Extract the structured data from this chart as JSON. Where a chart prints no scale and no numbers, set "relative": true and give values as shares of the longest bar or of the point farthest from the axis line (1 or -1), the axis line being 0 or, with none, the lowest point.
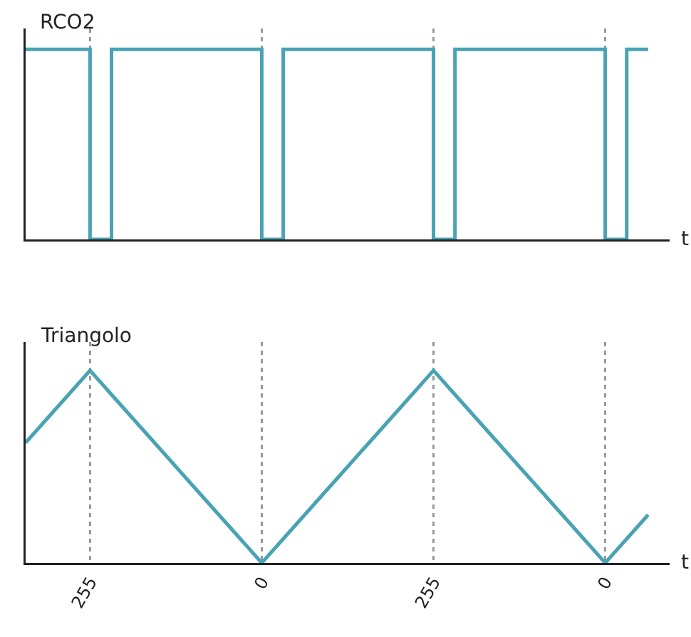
{
  "chart_data": [
    {
      "type": "step",
      "ylabel": "RCO2",
      "xlabel": "t",
      "relative": true,
      "tick_labels": false,
      "grid": "x",
      "categories": [
        null,
        null,
        null,
        "255",
        null,
        null,
        null,
        null,
        null,
        null,
        null,
        "0",
        null,
        null,
        null,
        null,
        null,
        null,
        null,
        "255",
        null,
        null,
        null,
        null,
        null,
        null,
        null,
        "0",
        null,
        null
      ],
      "series": [
        {
          "color": "#4aa3b5",
          "values": [
            1,
            1,
            1,
            0,
            1,
            1,
            1,
            1,
            1,
            1,
            1,
            0,
            1,
            1,
            1,
            1,
            1,
            1,
            1,
            0,
            1,
            1,
            1,
            1,
            1,
            1,
            1,
            0,
            1,
            1
          ]
        }
      ]
    },
    {
      "type": "line",
      "ylabel": "Triangolo",
      "xlabel": "t",
      "relative": true,
      "tick_labels": "x",
      "grid": "x",
      "categories": [
        null,
        null,
        null,
        "255",
        null,
        null,
        null,
        null,
        null,
        null,
        null,
        "0",
        null,
        null,
        null,
        null,
        null,
        null,
        null,
        "255",
        null,
        null,
        null,
        null,
        null,
        null,
        null,
        "0",
        null,
        null
      ],
      "series": [
        {
          "color": "#4aa3b5",
          "values": [
            0.625,
            0.75,
            0.875,
            1,
            0.875,
            0.75,
            0.625,
            0.5,
            0.375,
            0.25,
            0.125,
            0,
            0.125,
            0.25,
            0.375,
            0.5,
            0.625,
            0.75,
            0.875,
            1,
            0.875,
            0.75,
            0.625,
            0.5,
            0.375,
            0.25,
            0.125,
            0,
            0.125,
            0.25
          ]
        }
      ]
    }
  ]
}
